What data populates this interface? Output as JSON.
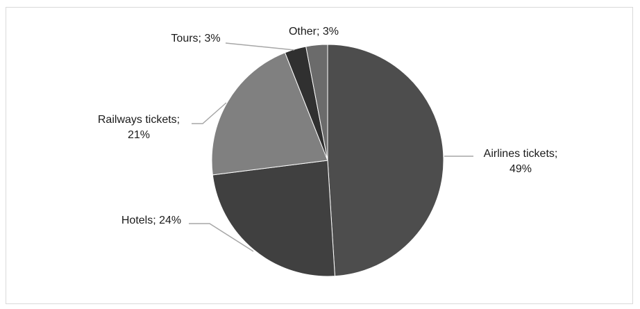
{
  "chart_data": {
    "type": "pie",
    "title": "",
    "slices": [
      {
        "label": "Airlines tickets",
        "value": 49,
        "color": "#4d4d4d",
        "lines": [
          "Airlines tickets;",
          "49%"
        ]
      },
      {
        "label": "Hotels",
        "value": 24,
        "color": "#404040",
        "lines": [
          "Hotels; 24%"
        ]
      },
      {
        "label": "Railways tickets",
        "value": 21,
        "color": "#808080",
        "lines": [
          "Railways tickets;",
          "21%"
        ]
      },
      {
        "label": "Tours",
        "value": 3,
        "color": "#303030",
        "lines": [
          "Tours; 3%"
        ]
      },
      {
        "label": "Other",
        "value": 3,
        "color": "#6b6b6b",
        "lines": [
          "Other; 3%"
        ]
      }
    ],
    "legend": "none",
    "colors": {
      "background": "#ffffff",
      "frame": "#d9d9d9",
      "leader": "#a6a6a6"
    }
  }
}
